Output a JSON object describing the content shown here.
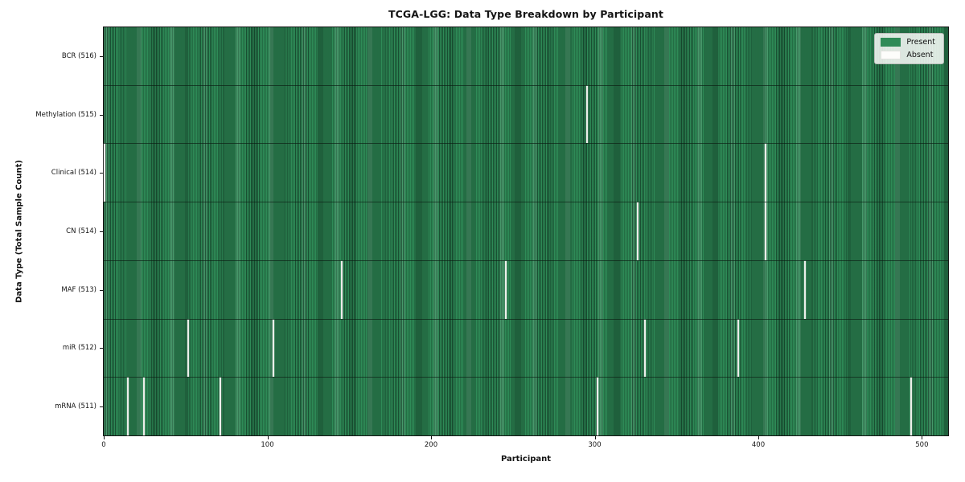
{
  "figure": {
    "title": "TCGA-LGG: Data Type Breakdown by Participant",
    "xlabel": "Participant",
    "ylabel": "Data Type (Total Sample Count)"
  },
  "legend": {
    "items": [
      {
        "label": "Present",
        "color": "#2e8b57"
      },
      {
        "label": "Absent",
        "color": "#fdfdfb"
      }
    ]
  },
  "chart_data": {
    "type": "heatmap",
    "title": "TCGA-LGG: Data Type Breakdown by Participant",
    "xlabel": "Participant",
    "ylabel": "Data Type (Total Sample Count)",
    "x_ticks": [
      0,
      100,
      200,
      300,
      400,
      500
    ],
    "x_range": [
      0,
      516
    ],
    "n_participants": 516,
    "legend_entries": [
      "Present",
      "Absent"
    ],
    "legend_position": "upper right",
    "grid": false,
    "colors": {
      "present": "#2e8b57",
      "absent": "#eceeea",
      "row_separator": "#1a3426"
    },
    "rows": [
      {
        "label": "BCR (516)",
        "data_type": "BCR",
        "total_samples": 516,
        "absent_participants": []
      },
      {
        "label": "Methylation (515)",
        "data_type": "Methylation",
        "total_samples": 515,
        "absent_participants": [
          295
        ]
      },
      {
        "label": "Clinical (514)",
        "data_type": "Clinical",
        "total_samples": 514,
        "absent_participants": [
          0,
          404
        ]
      },
      {
        "label": "CN (514)",
        "data_type": "CN",
        "total_samples": 514,
        "absent_participants": [
          326,
          404
        ]
      },
      {
        "label": "MAF (513)",
        "data_type": "MAF",
        "total_samples": 513,
        "absent_participants": [
          145,
          245,
          428
        ]
      },
      {
        "label": "miR (512)",
        "data_type": "miR",
        "total_samples": 512,
        "absent_participants": [
          51,
          103,
          330,
          387
        ]
      },
      {
        "label": "mRNA (511)",
        "data_type": "mRNA",
        "total_samples": 511,
        "absent_participants": [
          14,
          24,
          71,
          301,
          493
        ]
      }
    ]
  }
}
